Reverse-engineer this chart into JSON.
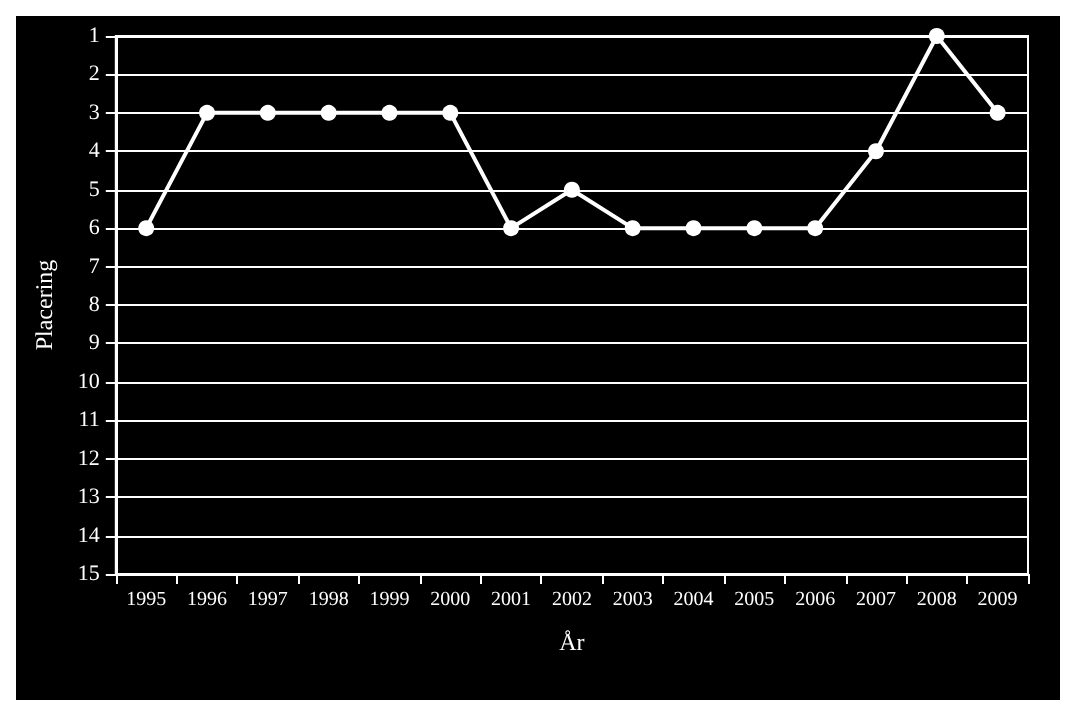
{
  "chart_data": {
    "type": "line",
    "xlabel": "År",
    "ylabel": "Placering",
    "categories": [
      "1995",
      "1996",
      "1997",
      "1998",
      "1999",
      "2000",
      "2001",
      "2002",
      "2003",
      "2004",
      "2005",
      "2006",
      "2007",
      "2008",
      "2009"
    ],
    "series": [
      {
        "color": "#ffffff",
        "values": [
          6,
          3,
          3,
          3,
          3,
          3,
          6,
          5,
          6,
          6,
          6,
          6,
          4,
          1,
          3
        ]
      }
    ],
    "ylim": [
      15,
      1
    ],
    "yticks": [
      1,
      2,
      3,
      4,
      5,
      6,
      7,
      8,
      9,
      10,
      11,
      12,
      13,
      14,
      15
    ],
    "grid": "y",
    "marker": "circle",
    "line_style": "solid"
  }
}
